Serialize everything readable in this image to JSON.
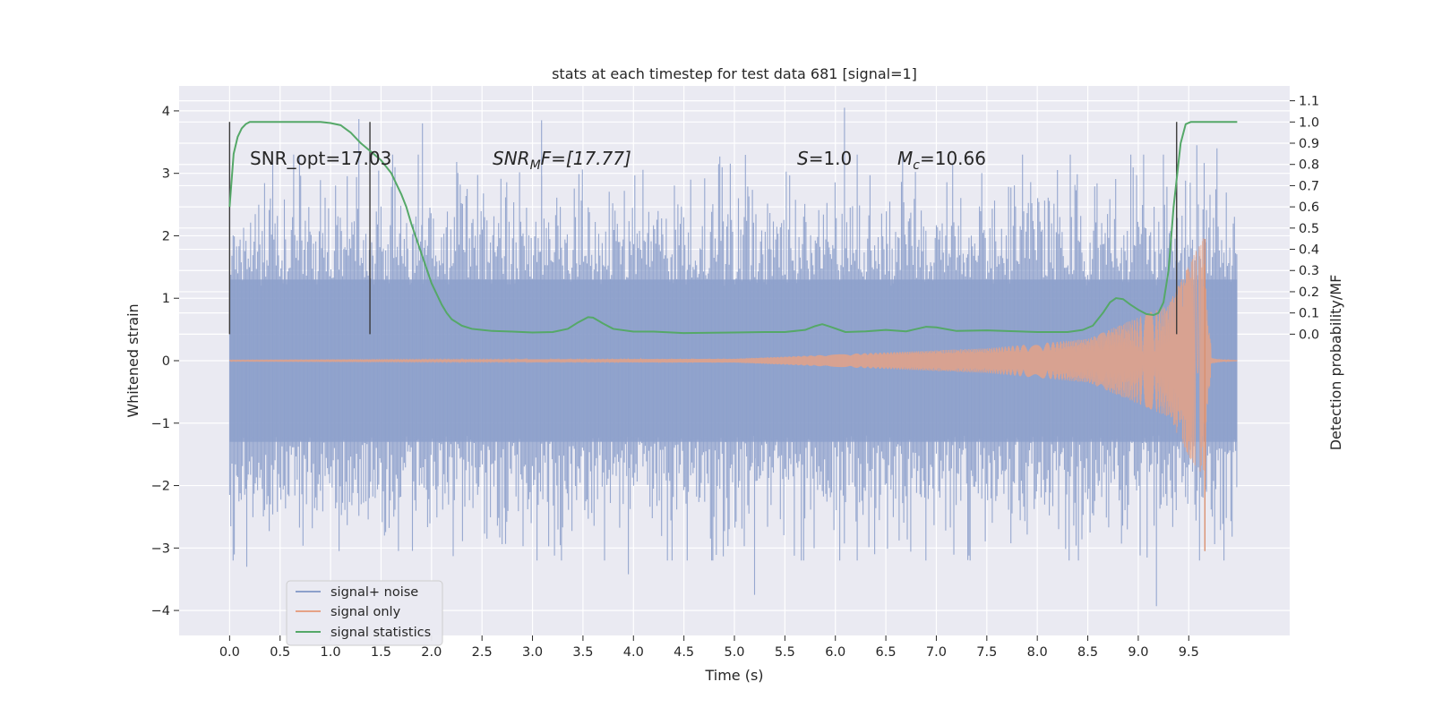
{
  "chart_data": {
    "type": "line",
    "title": "stats at each timestep for test data 681 [signal=1]",
    "xlabel": "Time (s)",
    "ylabel": "Whitened strain",
    "ylabel_right": "Detection probability/MF",
    "xlim": [
      -0.5,
      10.5
    ],
    "ylim": [
      -4.4,
      4.4
    ],
    "ylim_right": [
      -1.42,
      1.17
    ],
    "x_ticks": [
      0.0,
      0.5,
      1.0,
      1.5,
      2.0,
      2.5,
      3.0,
      3.5,
      4.0,
      4.5,
      5.0,
      5.5,
      6.0,
      6.5,
      7.0,
      7.5,
      8.0,
      8.5,
      9.0,
      9.5
    ],
    "x_tick_labels": [
      "0.0",
      "0.5",
      "1.0",
      "1.5",
      "2.0",
      "2.5",
      "3.0",
      "3.5",
      "4.0",
      "4.5",
      "5.0",
      "5.5",
      "6.0",
      "6.5",
      "7.0",
      "7.5",
      "8.0",
      "8.5",
      "9.0",
      "9.5"
    ],
    "y_ticks": [
      -4,
      -3,
      -2,
      -1,
      0,
      1,
      2,
      3,
      4
    ],
    "y_tick_labels": [
      "−4",
      "−3",
      "−2",
      "−1",
      "0",
      "1",
      "2",
      "3",
      "4"
    ],
    "y_ticks_right": [
      0.0,
      0.1,
      0.2,
      0.3,
      0.4,
      0.5,
      0.6,
      0.7,
      0.8,
      0.9,
      1.0,
      1.1
    ],
    "y_tick_labels_right": [
      "0.0",
      "0.1",
      "0.2",
      "0.3",
      "0.4",
      "0.5",
      "0.6",
      "0.7",
      "0.8",
      "0.9",
      "1.0",
      "1.1"
    ],
    "grid": true,
    "legend_position": "lower-left",
    "legend": [
      {
        "label": "signal+ noise",
        "color": "#8da0cb"
      },
      {
        "label": "signal only",
        "color": "#e5a286"
      },
      {
        "label": "signal statistics",
        "color": "#55a868"
      }
    ],
    "annotations": {
      "snr_opt": "SNR_opt=17.03",
      "snr_mf_main": "SNR",
      "snr_mf_sub": "M",
      "snr_mf_rest": "F=[17.77]",
      "s_main": "S",
      "s_rest": "=1.0",
      "mc_main": "M",
      "mc_sub": "c",
      "mc_rest": "=10.66"
    },
    "vertical_markers": [
      0.0,
      1.39,
      9.38
    ],
    "series": [
      {
        "name": "signal+ noise",
        "color": "#8da0cb",
        "t_range": [
          0.0,
          9.98
        ],
        "envelope_typical": [
          -1.3,
          1.3
        ],
        "envelope_extreme": [
          -3.75,
          4.05
        ],
        "notable_spikes": [
          {
            "t": 1.28,
            "v": 3.87
          },
          {
            "t": 1.91,
            "v": 3.8
          },
          {
            "t": 3.09,
            "v": 3.85
          },
          {
            "t": 6.09,
            "v": 4.05
          },
          {
            "t": 5.2,
            "v": -3.75
          },
          {
            "t": 9.18,
            "v": -3.93
          },
          {
            "t": 0.17,
            "v": -3.3
          },
          {
            "t": 3.95,
            "v": -3.42
          },
          {
            "t": 9.58,
            "v": 3.45
          },
          {
            "t": 9.78,
            "v": 3.4
          }
        ]
      },
      {
        "name": "signal only",
        "color": "#e5a286",
        "t_range": [
          0.0,
          9.98
        ],
        "description_points": [
          {
            "t": 0.0,
            "amp": 0.01
          },
          {
            "t": 5.0,
            "amp": 0.03
          },
          {
            "t": 6.0,
            "amp": 0.1
          },
          {
            "t": 7.5,
            "amp": 0.2
          },
          {
            "t": 8.5,
            "amp": 0.35
          },
          {
            "t": 9.3,
            "amp": 0.9
          },
          {
            "t": 9.65,
            "amp": 2.0
          },
          {
            "t": 9.7,
            "amp": 0.0
          }
        ]
      },
      {
        "name": "signal statistics",
        "color": "#55a868",
        "x": [
          0.0,
          0.04,
          0.08,
          0.12,
          0.16,
          0.2,
          0.3,
          0.5,
          0.7,
          0.9,
          1.0,
          1.1,
          1.2,
          1.3,
          1.4,
          1.5,
          1.6,
          1.7,
          1.75,
          1.8,
          1.85,
          1.9,
          1.95,
          2.0,
          2.05,
          2.1,
          2.15,
          2.2,
          2.3,
          2.4,
          2.5,
          2.6,
          2.8,
          3.0,
          3.2,
          3.35,
          3.45,
          3.55,
          3.6,
          3.7,
          3.8,
          4.0,
          4.2,
          4.5,
          5.0,
          5.3,
          5.5,
          5.7,
          5.8,
          5.87,
          5.95,
          6.1,
          6.3,
          6.5,
          6.7,
          6.9,
          7.0,
          7.2,
          7.5,
          8.0,
          8.3,
          8.45,
          8.55,
          8.65,
          8.72,
          8.78,
          8.85,
          8.92,
          9.0,
          9.08,
          9.15,
          9.2,
          9.25,
          9.3,
          9.35,
          9.42,
          9.47,
          9.52,
          9.6,
          9.98
        ],
        "values": [
          0.6,
          0.85,
          0.93,
          0.97,
          0.99,
          1.0,
          1.0,
          1.0,
          1.0,
          1.0,
          0.995,
          0.985,
          0.95,
          0.9,
          0.86,
          0.82,
          0.76,
          0.66,
          0.6,
          0.52,
          0.45,
          0.38,
          0.31,
          0.24,
          0.19,
          0.14,
          0.1,
          0.07,
          0.04,
          0.025,
          0.02,
          0.015,
          0.012,
          0.008,
          0.01,
          0.025,
          0.055,
          0.08,
          0.078,
          0.05,
          0.025,
          0.012,
          0.012,
          0.005,
          0.008,
          0.01,
          0.01,
          0.02,
          0.038,
          0.047,
          0.035,
          0.01,
          0.013,
          0.02,
          0.013,
          0.035,
          0.032,
          0.015,
          0.018,
          0.01,
          0.01,
          0.02,
          0.04,
          0.1,
          0.15,
          0.17,
          0.165,
          0.14,
          0.115,
          0.095,
          0.09,
          0.1,
          0.15,
          0.3,
          0.6,
          0.9,
          0.99,
          1.0,
          1.0,
          1.0
        ]
      }
    ]
  }
}
